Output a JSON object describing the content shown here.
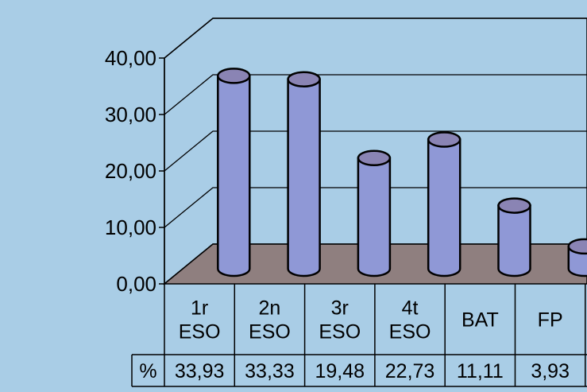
{
  "chart_data": {
    "type": "bar",
    "style": "3d-cylinder",
    "categories": [
      [
        "1r",
        "ESO"
      ],
      [
        "2n",
        "ESO"
      ],
      [
        "3r",
        "ESO"
      ],
      [
        "4t",
        "ESO"
      ],
      [
        "BAT"
      ],
      [
        "FP"
      ]
    ],
    "series": [
      {
        "name": "%",
        "values": [
          33.93,
          33.33,
          19.48,
          22.73,
          11.11,
          3.93
        ],
        "labels": [
          "33,93",
          "33,33",
          "19,48",
          "22,73",
          "11,11",
          "3,93"
        ]
      }
    ],
    "yticks": [
      "0,00",
      "10,00",
      "20,00",
      "30,00",
      "40,00"
    ],
    "ylim": [
      0,
      40
    ],
    "grid": true,
    "legend": "none",
    "data_table": true,
    "colors": {
      "background": "#a9cde6",
      "floor": "#8f7f7f",
      "cylinder": "#8f98d6",
      "cylinder_top": "#8a84b4"
    }
  }
}
